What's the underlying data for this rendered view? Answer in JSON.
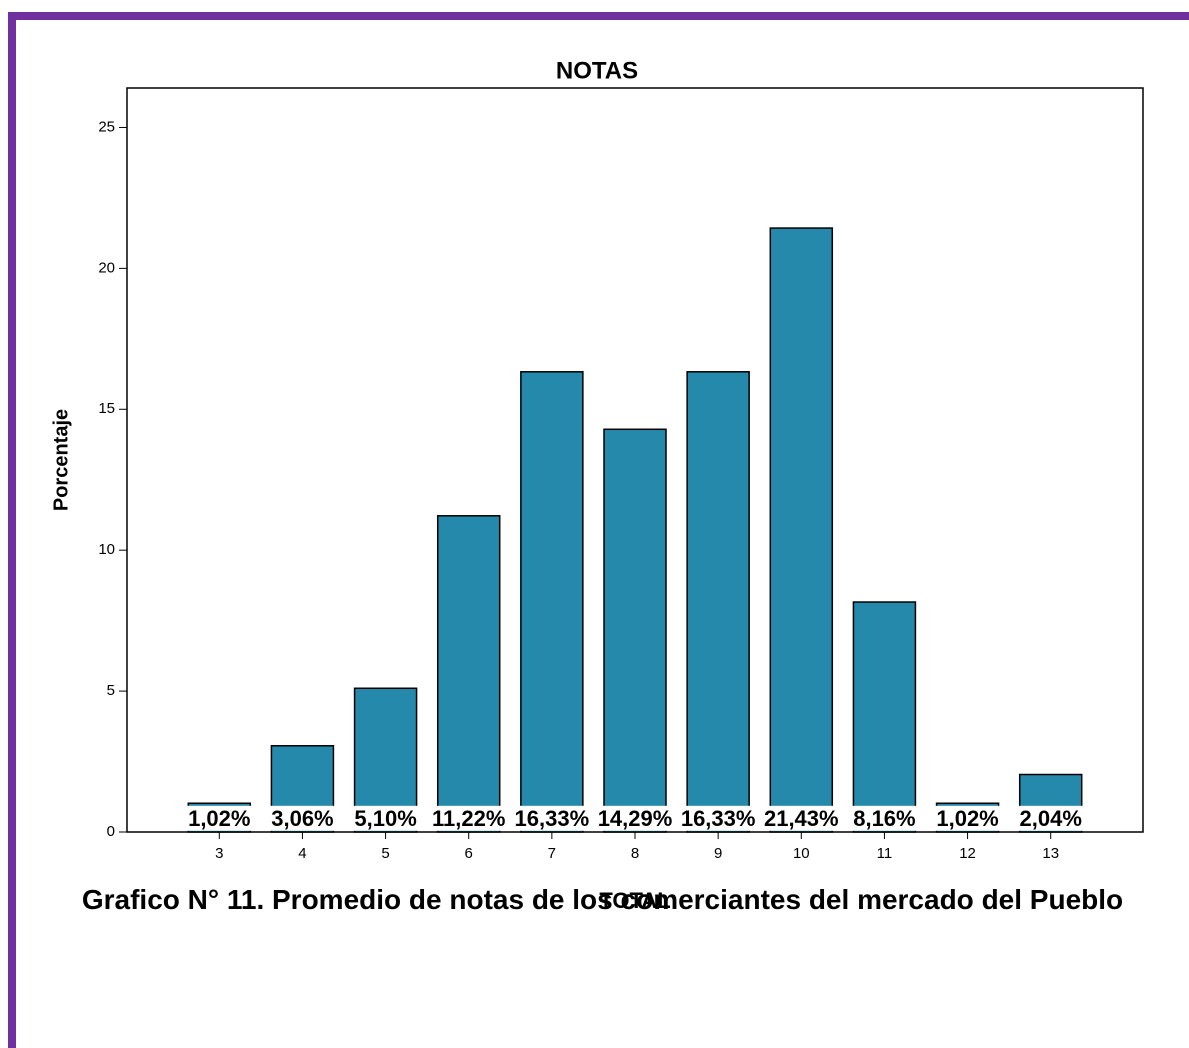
{
  "chart_data": {
    "type": "bar",
    "title": "NOTAS",
    "x_label": "TOTAL",
    "y_label": "Porcentaje",
    "categories": [
      "3",
      "4",
      "5",
      "6",
      "7",
      "8",
      "9",
      "10",
      "11",
      "12",
      "13"
    ],
    "values": [
      1.02,
      3.06,
      5.1,
      11.22,
      16.33,
      14.29,
      16.33,
      21.43,
      8.16,
      1.02,
      2.04
    ],
    "value_labels": [
      "1,02%",
      "3,06%",
      "5,10%",
      "11,22%",
      "16,33%",
      "14,29%",
      "16,33%",
      "21,43%",
      "8,16%",
      "1,02%",
      "2,04%"
    ],
    "color": "#2589ab",
    "ylim": [
      0,
      26.4
    ],
    "yticks": [
      0,
      5,
      10,
      15,
      20,
      25
    ],
    "grid": false
  },
  "caption": "Grafico N° 11. Promedio de notas de los comerciantes del mercado del Pueblo"
}
